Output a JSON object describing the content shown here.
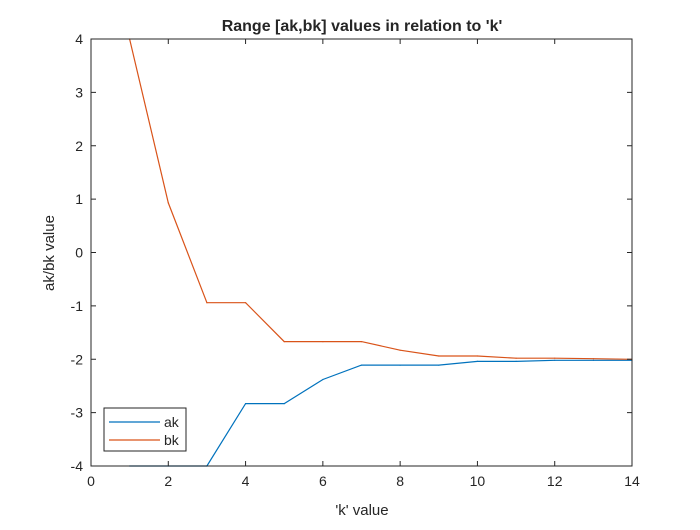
{
  "chart_data": {
    "type": "line",
    "title": "Range [ak,bk] values in relation to 'k'",
    "xlabel": "'k' value",
    "ylabel": "ak/bk value",
    "xlim": [
      0,
      14
    ],
    "ylim": [
      -4,
      4
    ],
    "xticks": [
      "0",
      "2",
      "4",
      "6",
      "8",
      "10",
      "12",
      "14"
    ],
    "yticks": [
      "4",
      "3",
      "2",
      "1",
      "0",
      "-1",
      "-2",
      "-3",
      "-4"
    ],
    "grid": false,
    "legend_position": "bottom-left",
    "series": [
      {
        "name": "ak",
        "color": "#0072BD",
        "x": [
          1,
          2,
          3,
          4,
          5,
          6,
          7,
          8,
          9,
          10,
          11,
          12,
          13,
          14
        ],
        "y": [
          -4.0,
          -4.0,
          -4.0,
          -2.83,
          -2.83,
          -2.38,
          -2.11,
          -2.11,
          -2.11,
          -2.04,
          -2.04,
          -2.02,
          -2.02,
          -2.02
        ]
      },
      {
        "name": "bk",
        "color": "#D95319",
        "x": [
          1,
          2,
          3,
          4,
          5,
          6,
          7,
          8,
          9,
          10,
          11,
          12,
          13,
          14
        ],
        "y": [
          4.0,
          0.93,
          -0.94,
          -0.94,
          -1.67,
          -1.67,
          -1.67,
          -1.83,
          -1.94,
          -1.94,
          -1.98,
          -1.98,
          -1.99,
          -2.0
        ]
      }
    ]
  }
}
